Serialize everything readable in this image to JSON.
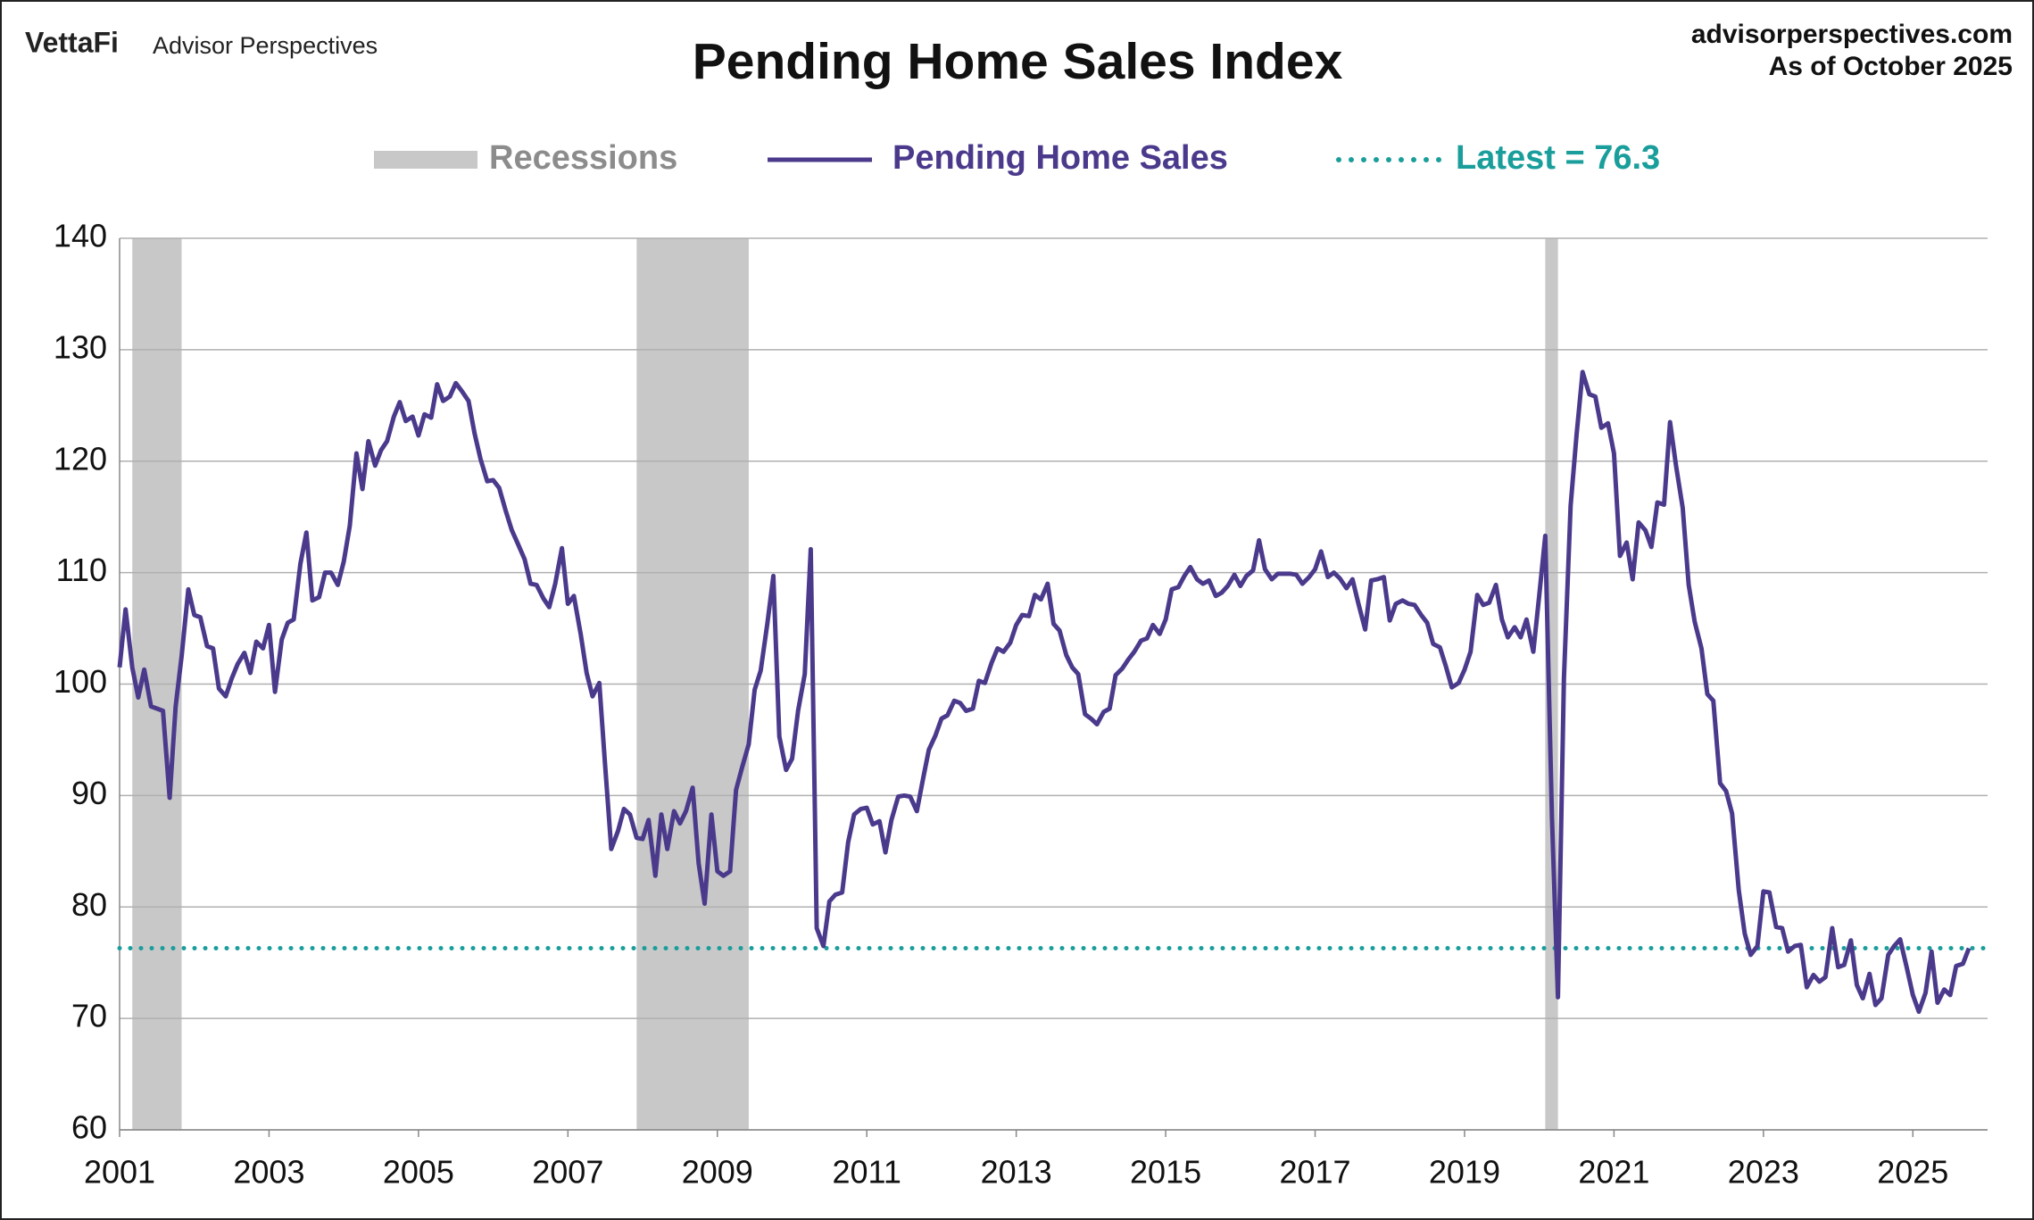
{
  "header": {
    "brand": "VettaFi",
    "brand_sub": "Advisor Perspectives",
    "site": "advisorperspectives.com",
    "as_of": "As of October 2025"
  },
  "chart_data": {
    "type": "line",
    "title": "Pending Home Sales Index",
    "xlim": [
      2001,
      2026
    ],
    "xticks": [
      2001,
      2003,
      2005,
      2007,
      2009,
      2011,
      2013,
      2015,
      2017,
      2019,
      2021,
      2023,
      2025
    ],
    "ylim": [
      60,
      140
    ],
    "yticks": [
      60,
      70,
      80,
      90,
      100,
      110,
      120,
      130,
      140
    ],
    "grid": true,
    "recessions": {
      "name": "Recessions",
      "color": "#c8c8c8",
      "spans": [
        [
          2001.17,
          2001.83
        ],
        [
          2007.92,
          2009.42
        ],
        [
          2020.08,
          2020.25
        ]
      ]
    },
    "latest": {
      "label": "Latest = 76.3",
      "value": 76.3,
      "color": "#1a9e9b"
    },
    "x": [
      2001,
      2001.08,
      2001.17,
      2001.25,
      2001.33,
      2001.42,
      2001.5,
      2001.58,
      2001.67,
      2001.75,
      2001.83,
      2001.92,
      2002,
      2002.08,
      2002.17,
      2002.25,
      2002.33,
      2002.42,
      2002.5,
      2002.58,
      2002.67,
      2002.75,
      2002.83,
      2002.92,
      2003,
      2003.08,
      2003.17,
      2003.25,
      2003.33,
      2003.42,
      2003.5,
      2003.58,
      2003.67,
      2003.75,
      2003.83,
      2003.92,
      2004,
      2004.08,
      2004.17,
      2004.25,
      2004.33,
      2004.42,
      2004.5,
      2004.58,
      2004.67,
      2004.75,
      2004.83,
      2004.92,
      2005,
      2005.08,
      2005.17,
      2005.25,
      2005.33,
      2005.42,
      2005.5,
      2005.58,
      2005.67,
      2005.75,
      2005.83,
      2005.92,
      2006,
      2006.08,
      2006.17,
      2006.25,
      2006.33,
      2006.42,
      2006.5,
      2006.58,
      2006.67,
      2006.75,
      2006.83,
      2006.92,
      2007,
      2007.08,
      2007.17,
      2007.25,
      2007.33,
      2007.42,
      2007.5,
      2007.58,
      2007.67,
      2007.75,
      2007.83,
      2007.92,
      2008,
      2008.08,
      2008.17,
      2008.25,
      2008.33,
      2008.42,
      2008.5,
      2008.58,
      2008.67,
      2008.75,
      2008.83,
      2008.92,
      2009,
      2009.08,
      2009.17,
      2009.25,
      2009.33,
      2009.42,
      2009.5,
      2009.58,
      2009.67,
      2009.75,
      2009.83,
      2009.92,
      2010,
      2010.08,
      2010.17,
      2010.25,
      2010.33,
      2010.42,
      2010.5,
      2010.58,
      2010.67,
      2010.75,
      2010.83,
      2010.92,
      2011,
      2011.08,
      2011.17,
      2011.25,
      2011.33,
      2011.42,
      2011.5,
      2011.58,
      2011.67,
      2011.75,
      2011.83,
      2011.92,
      2012,
      2012.08,
      2012.17,
      2012.25,
      2012.33,
      2012.42,
      2012.5,
      2012.58,
      2012.67,
      2012.75,
      2012.83,
      2012.92,
      2013,
      2013.08,
      2013.17,
      2013.25,
      2013.33,
      2013.42,
      2013.5,
      2013.58,
      2013.67,
      2013.75,
      2013.83,
      2013.92,
      2014,
      2014.08,
      2014.17,
      2014.25,
      2014.33,
      2014.42,
      2014.5,
      2014.58,
      2014.67,
      2014.75,
      2014.83,
      2014.92,
      2015,
      2015.08,
      2015.17,
      2015.25,
      2015.33,
      2015.42,
      2015.5,
      2015.58,
      2015.67,
      2015.75,
      2015.83,
      2015.92,
      2016,
      2016.08,
      2016.17,
      2016.25,
      2016.33,
      2016.42,
      2016.5,
      2016.58,
      2016.67,
      2016.75,
      2016.83,
      2016.92,
      2017,
      2017.08,
      2017.17,
      2017.25,
      2017.33,
      2017.42,
      2017.5,
      2017.58,
      2017.67,
      2017.75,
      2017.83,
      2017.92,
      2018,
      2018.08,
      2018.17,
      2018.25,
      2018.33,
      2018.42,
      2018.5,
      2018.58,
      2018.67,
      2018.75,
      2018.83,
      2018.92,
      2019,
      2019.08,
      2019.17,
      2019.25,
      2019.33,
      2019.42,
      2019.5,
      2019.58,
      2019.67,
      2019.75,
      2019.83,
      2019.92,
      2020,
      2020.08,
      2020.17,
      2020.25,
      2020.33,
      2020.42,
      2020.5,
      2020.58,
      2020.67,
      2020.75,
      2020.83,
      2020.92,
      2021,
      2021.08,
      2021.17,
      2021.25,
      2021.33,
      2021.42,
      2021.5,
      2021.58,
      2021.67,
      2021.75,
      2021.83,
      2021.92,
      2022,
      2022.08,
      2022.17,
      2022.25,
      2022.33,
      2022.42,
      2022.5,
      2022.58,
      2022.67,
      2022.75,
      2022.83,
      2022.92,
      2023,
      2023.08,
      2023.17,
      2023.25,
      2023.33,
      2023.42,
      2023.5,
      2023.58,
      2023.67,
      2023.75,
      2023.83,
      2023.92,
      2024,
      2024.08,
      2024.17,
      2024.25,
      2024.33,
      2024.42,
      2024.5,
      2024.58,
      2024.67,
      2024.75,
      2024.83,
      2024.92,
      2025,
      2025.08,
      2025.17,
      2025.25,
      2025.33,
      2025.42,
      2025.5,
      2025.58,
      2025.67,
      2025.75
    ],
    "series": [
      {
        "name": "Pending Home Sales",
        "color": "#4b3a8c",
        "values": [
          101.5,
          106.7,
          101.5,
          98.8,
          101.3,
          98,
          97.8,
          97.6,
          89.8,
          98,
          102.5,
          108.5,
          106.2,
          106,
          103.4,
          103.2,
          99.6,
          98.9,
          100.5,
          101.8,
          102.8,
          101,
          103.8,
          103.2,
          105.3,
          99.3,
          104,
          105.5,
          105.8,
          110.8,
          113.6,
          107.5,
          107.8,
          110,
          110,
          108.9,
          111,
          114.2,
          120.7,
          117.5,
          121.8,
          119.6,
          121,
          121.8,
          124,
          125.3,
          123.6,
          124,
          122.3,
          124.2,
          123.9,
          126.9,
          125.4,
          125.8,
          127,
          126.3,
          125.4,
          122.5,
          120.2,
          118.2,
          118.3,
          117.6,
          115.5,
          113.8,
          112.6,
          111.2,
          109,
          108.9,
          107.7,
          106.9,
          109,
          112.2,
          107.2,
          107.9,
          104.5,
          101,
          98.9,
          100.1,
          92.5,
          85.2,
          86.8,
          88.8,
          88.3,
          86.2,
          86.1,
          87.8,
          82.8,
          88.3,
          85.2,
          88.6,
          87.5,
          88.6,
          90.7,
          83.9,
          80.3,
          88.3,
          83.2,
          82.8,
          83.2,
          90.5,
          92.5,
          94.6,
          99.5,
          101.2,
          105.5,
          109.7,
          95.3,
          92.3,
          93.3,
          97.6,
          100.9,
          112.1,
          78.1,
          76.5,
          80.5,
          81.1,
          81.3,
          85.8,
          88.3,
          88.8,
          88.9,
          87.4,
          87.7,
          84.9,
          87.8,
          89.9,
          90,
          89.9,
          88.6,
          91.4,
          94.1,
          95.4,
          96.9,
          97.2,
          98.5,
          98.3,
          97.6,
          97.8,
          100.3,
          100.1,
          101.9,
          103.2,
          102.9,
          103.7,
          105.3,
          106.2,
          106.1,
          108,
          107.6,
          109,
          105.4,
          104.8,
          102.6,
          101.5,
          100.9,
          97.3,
          96.9,
          96.4,
          97.5,
          97.8,
          100.8,
          101.4,
          102.2,
          102.9,
          103.9,
          104.1,
          105.3,
          104.5,
          105.8,
          108.5,
          108.7,
          109.7,
          110.5,
          109.4,
          109,
          109.3,
          107.9,
          108.2,
          108.8,
          109.8,
          108.8,
          109.7,
          110.2,
          112.9,
          110.3,
          109.4,
          109.9,
          109.9,
          109.9,
          109.8,
          109,
          109.6,
          110.3,
          111.9,
          109.6,
          110,
          109.5,
          108.6,
          109.4,
          107.2,
          104.9,
          109.3,
          109.4,
          109.6,
          105.7,
          107.2,
          107.5,
          107.2,
          107.1,
          106.2,
          105.5,
          103.6,
          103.3,
          101.6,
          99.7,
          100.1,
          101.3,
          102.9,
          108,
          107.1,
          107.3,
          108.9,
          105.8,
          104.2,
          105.1,
          104.2,
          105.8,
          102.9,
          108,
          113.3,
          88,
          71.9,
          100.5,
          116,
          122.4,
          128,
          126,
          125.8,
          123,
          123.4,
          120.7,
          111.5,
          112.7,
          109.4,
          114.5,
          113.8,
          112.3,
          116.3,
          116.1,
          123.5,
          119.6,
          115.8,
          108.9,
          105.6,
          103.2,
          99.1,
          98.5,
          91.1,
          90.4,
          88.4,
          81.5,
          77.6,
          75.7,
          76.5,
          81.4,
          81.3,
          78.2,
          78.1,
          76,
          76.5,
          76.6,
          72.8,
          73.9,
          73.3,
          73.7,
          78.1,
          74.6,
          74.8,
          77,
          73,
          71.8,
          74,
          71.2,
          71.8,
          75.7,
          76.5,
          77.1,
          74.5,
          72.1,
          70.6,
          72.3,
          76,
          71.4,
          72.6,
          72.1,
          74.7,
          74.9,
          76.3
        ]
      }
    ]
  }
}
